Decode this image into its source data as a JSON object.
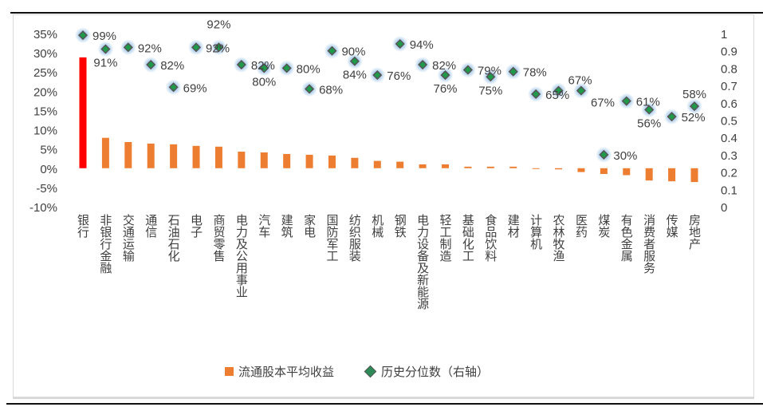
{
  "chart_data": {
    "type": "bar+scatter",
    "categories": [
      "银行",
      "非银行金融",
      "交通运输",
      "通信",
      "石油石化",
      "电子",
      "商贸零售",
      "电力及公用事业",
      "汽车",
      "建筑",
      "家电",
      "国防军工",
      "纺织服装",
      "机械",
      "钢铁",
      "电力设备及新能源",
      "轻工制造",
      "基础化工",
      "食品饮料",
      "建材",
      "计算机",
      "农林牧渔",
      "医药",
      "煤炭",
      "有色金属",
      "消费者服务",
      "传媒",
      "房地产"
    ],
    "series": [
      {
        "name": "流通股本平均收益",
        "type": "bar",
        "axis": "left",
        "color": "#ed7d31",
        "highlight": {
          "index": 0,
          "color": "#ff0000"
        },
        "values": [
          28.8,
          7.9,
          6.8,
          6.4,
          6.2,
          5.8,
          5.6,
          4.3,
          4.1,
          3.7,
          3.5,
          3.3,
          2.7,
          1.9,
          1.7,
          1.0,
          1.0,
          0.4,
          0.4,
          0.4,
          -0.2,
          -0.3,
          -1.0,
          -1.5,
          -1.8,
          -3.2,
          -3.4,
          -3.6
        ]
      },
      {
        "name": "历史分位数（右轴）",
        "type": "scatter",
        "axis": "right",
        "color": "#2e8b57",
        "values": [
          0.99,
          0.91,
          0.92,
          0.82,
          0.69,
          0.92,
          0.92,
          0.82,
          0.8,
          0.8,
          0.68,
          0.9,
          0.84,
          0.76,
          0.94,
          0.82,
          0.76,
          0.79,
          0.75,
          0.78,
          0.65,
          0.67,
          0.67,
          0.3,
          0.61,
          0.56,
          0.52,
          0.58
        ],
        "labels": [
          "99%",
          "91%",
          "92%",
          "82%",
          "69%",
          "92%",
          "92%",
          "82%",
          "80%",
          "80%",
          "68%",
          "90%",
          "84%",
          "76%",
          "94%",
          "82%",
          "76%",
          "79%",
          "75%",
          "78%",
          "65%",
          "67%",
          "67%",
          "30%",
          "61%",
          "56%",
          "52%",
          "58%"
        ]
      }
    ],
    "left_axis": {
      "ylim": [
        -10,
        35
      ],
      "ticks": [
        "-10%",
        "-5%",
        "0%",
        "5%",
        "10%",
        "15%",
        "20%",
        "25%",
        "30%",
        "35%"
      ]
    },
    "right_axis": {
      "ylim": [
        0,
        1
      ],
      "ticks": [
        "0",
        "0.1",
        "0.2",
        "0.3",
        "0.4",
        "0.5",
        "0.6",
        "0.7",
        "0.8",
        "0.9",
        "1"
      ]
    },
    "grid": false,
    "legend": {
      "position": "bottom",
      "items": [
        "流通股本平均收益",
        "历史分位数（右轴）"
      ]
    }
  }
}
